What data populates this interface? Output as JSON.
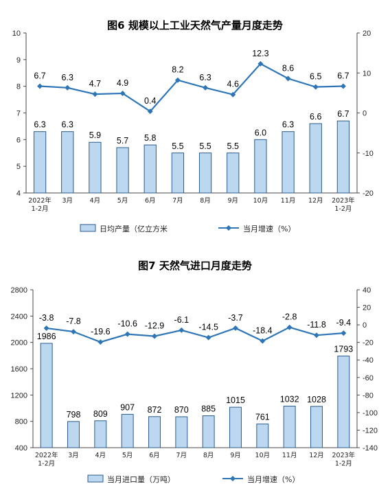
{
  "chart_data": [
    {
      "type": "bar",
      "title": "图6  规模以上工业天然气产量月度走势",
      "categories": [
        [
          "2022年",
          "1-2月"
        ],
        [
          "3月"
        ],
        [
          "4月"
        ],
        [
          "5月"
        ],
        [
          "6月"
        ],
        [
          "7月"
        ],
        [
          "8月"
        ],
        [
          "9月"
        ],
        [
          "10月"
        ],
        [
          "11月"
        ],
        [
          "12月"
        ],
        [
          "2023年",
          "1-2月"
        ]
      ],
      "series": [
        {
          "name": "日均产量（亿立方米",
          "kind": "bar",
          "axis": "left",
          "values": [
            6.3,
            6.3,
            5.9,
            5.7,
            5.8,
            5.5,
            5.5,
            5.5,
            6.0,
            6.3,
            6.6,
            6.7
          ]
        },
        {
          "name": "当月增速（%）",
          "kind": "line",
          "axis": "right",
          "values": [
            6.7,
            6.3,
            4.7,
            4.9,
            0.4,
            8.2,
            6.3,
            4.6,
            12.3,
            8.6,
            6.5,
            6.7
          ]
        }
      ],
      "ylim_left": [
        4,
        10
      ],
      "yticks_left": [
        4,
        5,
        6,
        7,
        8,
        9,
        10
      ],
      "ylim_right": [
        -20,
        20
      ],
      "yticks_right": [
        -20,
        -10,
        0,
        10,
        20
      ],
      "legend": "bottom",
      "colors": {
        "bar_fill": "#bcd8f0",
        "bar_stroke": "#2b5a8a",
        "line": "#2e75b6"
      }
    },
    {
      "type": "bar",
      "title": "图7  天然气进口月度走势",
      "categories": [
        [
          "2022年",
          "1-2月"
        ],
        [
          "3月"
        ],
        [
          "4月"
        ],
        [
          "5月"
        ],
        [
          "6月"
        ],
        [
          "7月"
        ],
        [
          "8月"
        ],
        [
          "9月"
        ],
        [
          "10月"
        ],
        [
          "11月"
        ],
        [
          "12月"
        ],
        [
          "2023年",
          "1-2月"
        ]
      ],
      "series": [
        {
          "name": "当月进口量（万吨）",
          "kind": "bar",
          "axis": "left",
          "values": [
            1986,
            798,
            809,
            907,
            872,
            870,
            885,
            1015,
            761,
            1032,
            1028,
            1793
          ]
        },
        {
          "name": "当月增速（%）",
          "kind": "line",
          "axis": "right",
          "values": [
            -3.8,
            -7.8,
            -19.6,
            -10.6,
            -12.9,
            -6.1,
            -14.5,
            -3.7,
            -18.4,
            -2.8,
            -11.8,
            -9.4
          ]
        }
      ],
      "ylim_left": [
        400,
        2800
      ],
      "yticks_left": [
        400,
        800,
        1200,
        1600,
        2000,
        2400,
        2800
      ],
      "ylim_right": [
        -140,
        40
      ],
      "yticks_right": [
        -140,
        -120,
        -100,
        -80,
        -60,
        -40,
        -20,
        0,
        20,
        40
      ],
      "legend": "bottom",
      "colors": {
        "bar_fill": "#bcd8f0",
        "bar_stroke": "#2b5a8a",
        "line": "#2e75b6"
      }
    }
  ]
}
